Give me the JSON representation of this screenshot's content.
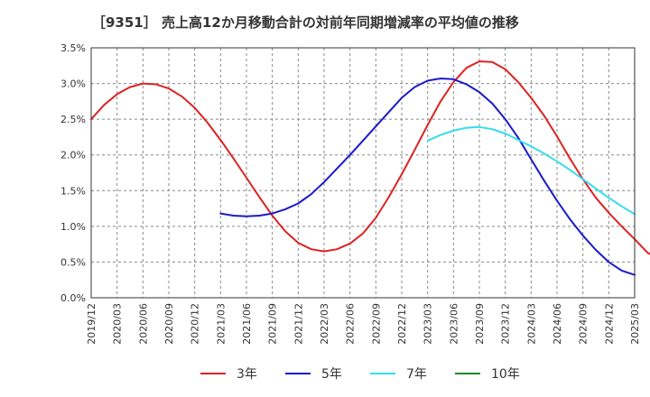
{
  "chart_data": {
    "type": "line",
    "title": "［9351］ 売上高12か月移動合計の対前年同期増減率の平均値の推移",
    "xlabel": "",
    "ylabel": "",
    "ylim": [
      0,
      3.5
    ],
    "y_ticks": [
      "0.0%",
      "0.5%",
      "1.0%",
      "1.5%",
      "2.0%",
      "2.5%",
      "3.0%",
      "3.5%"
    ],
    "x_ticks": [
      "2019/12",
      "2020/03",
      "2020/06",
      "2020/09",
      "2020/12",
      "2021/03",
      "2021/06",
      "2021/09",
      "2021/12",
      "2022/03",
      "2022/06",
      "2022/09",
      "2022/12",
      "2023/03",
      "2023/06",
      "2023/09",
      "2023/12",
      "2024/03",
      "2024/06",
      "2024/09",
      "2024/12",
      "2025/03"
    ],
    "grid": true,
    "legend_position": "bottom",
    "series": [
      {
        "name": "3年",
        "color": "#dd2222",
        "start": "2019/12",
        "values": [
          2.5,
          2.7,
          2.85,
          2.95,
          3.0,
          2.99,
          2.93,
          2.82,
          2.66,
          2.45,
          2.21,
          1.95,
          1.68,
          1.41,
          1.15,
          0.93,
          0.77,
          0.68,
          0.65,
          0.68,
          0.76,
          0.9,
          1.12,
          1.41,
          1.73,
          2.07,
          2.42,
          2.75,
          3.02,
          3.22,
          3.31,
          3.3,
          3.2,
          3.02,
          2.8,
          2.55,
          2.26,
          1.95,
          1.66,
          1.4,
          1.19,
          1.0,
          0.82,
          0.63,
          0.53
        ]
      },
      {
        "name": "5年",
        "color": "#1a1acc",
        "start": "2021/03",
        "values": [
          1.18,
          1.15,
          1.14,
          1.15,
          1.18,
          1.24,
          1.32,
          1.45,
          1.62,
          1.81,
          2.0,
          2.2,
          2.4,
          2.6,
          2.8,
          2.95,
          3.04,
          3.07,
          3.06,
          2.99,
          2.88,
          2.72,
          2.5,
          2.24,
          1.94,
          1.64,
          1.36,
          1.1,
          0.87,
          0.67,
          0.5,
          0.38,
          0.32
        ]
      },
      {
        "name": "7年",
        "color": "#33ddee",
        "start": "2023/03",
        "values": [
          2.2,
          2.28,
          2.34,
          2.38,
          2.39,
          2.36,
          2.3,
          2.21,
          2.12,
          2.02,
          1.91,
          1.79,
          1.66,
          1.53,
          1.4,
          1.28,
          1.17
        ]
      },
      {
        "name": "10年",
        "color": "#228822",
        "start": "",
        "values": []
      }
    ]
  }
}
